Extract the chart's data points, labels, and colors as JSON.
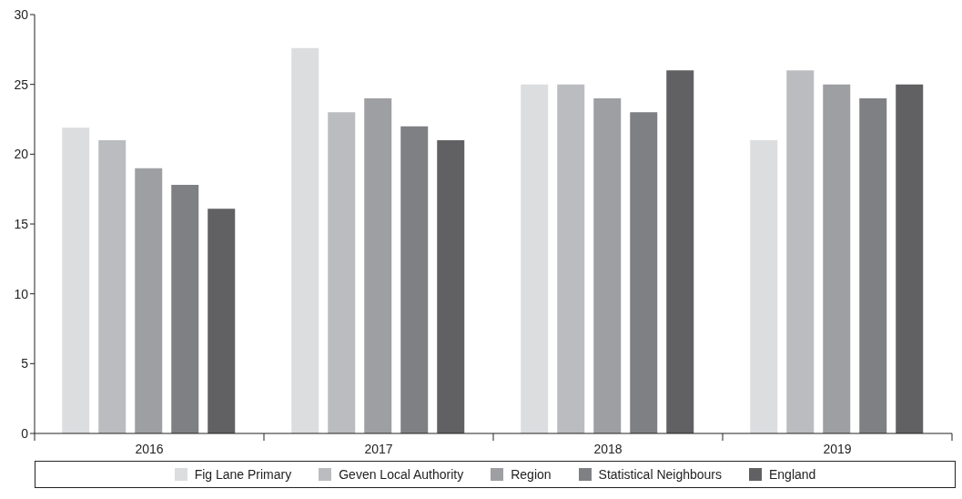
{
  "chart_data": {
    "type": "bar",
    "categories": [
      "2016",
      "2017",
      "2018",
      "2019"
    ],
    "series": [
      {
        "name": "Fig Lane Primary",
        "color": "#dcdddf",
        "values": [
          21.9,
          27.6,
          25,
          21
        ]
      },
      {
        "name": "Geven Local Authority",
        "color": "#bbbcbf",
        "values": [
          21,
          23,
          25,
          26
        ]
      },
      {
        "name": "Region",
        "color": "#9e9fa2",
        "values": [
          19,
          24,
          24,
          25
        ]
      },
      {
        "name": "Statistical Neighbours",
        "color": "#7f8084",
        "values": [
          17.8,
          22,
          23,
          24
        ]
      },
      {
        "name": "England",
        "color": "#616163",
        "values": [
          16.1,
          21,
          26,
          25
        ]
      }
    ],
    "ylim": [
      0,
      30
    ],
    "yticks": [
      0,
      5,
      10,
      15,
      20,
      25,
      30
    ],
    "grid": false,
    "legend": "bottom"
  }
}
